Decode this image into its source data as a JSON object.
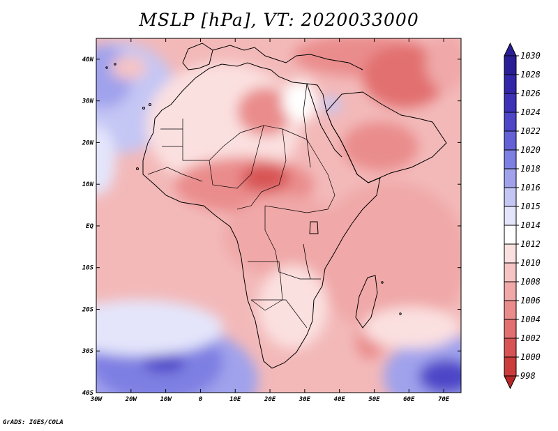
{
  "title": "MSLP [hPa], VT: 2020033000",
  "credit": "GrADS: IGES/COLA",
  "map": {
    "lon_range": [
      -30,
      75
    ],
    "lat_range": [
      -40,
      45
    ],
    "lon_ticks": [
      {
        "value": -30,
        "label": "30W"
      },
      {
        "value": -20,
        "label": "20W"
      },
      {
        "value": -10,
        "label": "10W"
      },
      {
        "value": 0,
        "label": "0"
      },
      {
        "value": 10,
        "label": "10E"
      },
      {
        "value": 20,
        "label": "20E"
      },
      {
        "value": 30,
        "label": "30E"
      },
      {
        "value": 40,
        "label": "40E"
      },
      {
        "value": 50,
        "label": "50E"
      },
      {
        "value": 60,
        "label": "60E"
      },
      {
        "value": 70,
        "label": "70E"
      }
    ],
    "lat_ticks": [
      {
        "value": 40,
        "label": "40N"
      },
      {
        "value": 30,
        "label": "30N"
      },
      {
        "value": 20,
        "label": "20N"
      },
      {
        "value": 10,
        "label": "10N"
      },
      {
        "value": 0,
        "label": "EQ"
      },
      {
        "value": -10,
        "label": "10S"
      },
      {
        "value": -20,
        "label": "20S"
      },
      {
        "value": -30,
        "label": "30S"
      },
      {
        "value": -40,
        "label": "40S"
      }
    ]
  },
  "colorbar": {
    "levels": [
      {
        "label": "1030",
        "color": "#2a1e96"
      },
      {
        "label": "1028",
        "color": "#3226a8"
      },
      {
        "label": "1026",
        "color": "#3c32b8"
      },
      {
        "label": "1024",
        "color": "#4d46c8"
      },
      {
        "label": "1022",
        "color": "#6461d6"
      },
      {
        "label": "1020",
        "color": "#7e7fe2"
      },
      {
        "label": "1018",
        "color": "#a0a2ec"
      },
      {
        "label": "1016",
        "color": "#c4c6f4"
      },
      {
        "label": "1015",
        "color": "#e4e5fb"
      },
      {
        "label": "1014",
        "color": "#ffffff"
      },
      {
        "label": "1012",
        "color": "#fbe0e0"
      },
      {
        "label": "1010",
        "color": "#f6c4c4"
      },
      {
        "label": "1008",
        "color": "#f0a8a8"
      },
      {
        "label": "1006",
        "color": "#ea8c8c"
      },
      {
        "label": "1004",
        "color": "#e27070"
      },
      {
        "label": "1002",
        "color": "#d85454"
      },
      {
        "label": "1000",
        "color": "#cc3c3c"
      },
      {
        "label": "998",
        "color": "#b82626"
      }
    ]
  },
  "colors": {
    "ocean_low_lat": "#f3b9b9",
    "land_base": "#f7cece",
    "high_pressure": "#5a56d0",
    "low_pressure": "#d85454"
  }
}
